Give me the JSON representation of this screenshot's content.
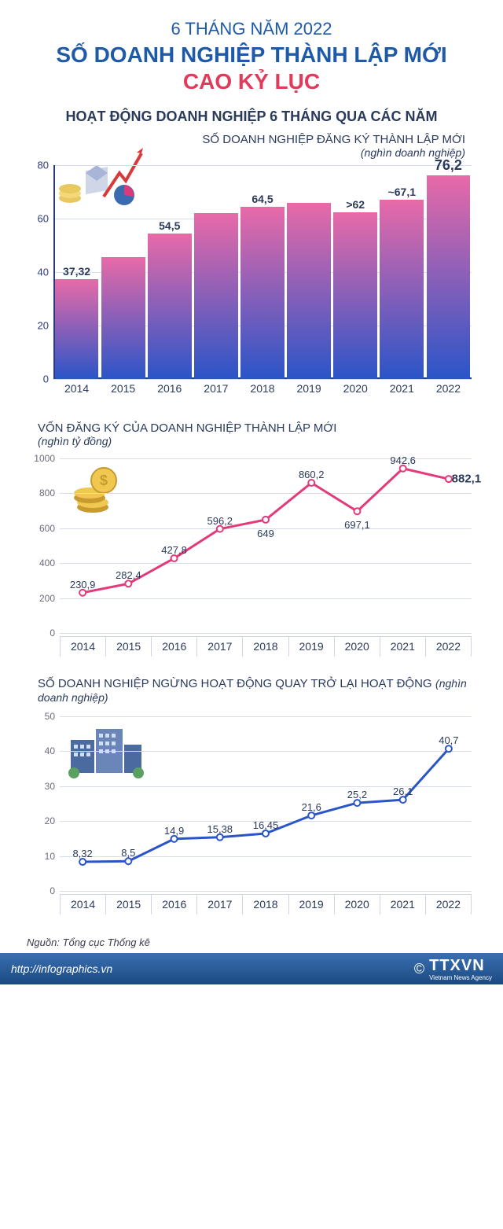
{
  "header": {
    "line1": "6 THÁNG NĂM 2022",
    "line1_color": "#1e5aa8",
    "line2": "SỐ DOANH NGHIỆP THÀNH LẬP MỚI",
    "line2_color": "#1e5aa8",
    "line3": "CAO KỶ LỤC",
    "line3_color": "#e23a5a"
  },
  "section_title": "HOẠT ĐỘNG DOANH NGHIỆP 6 THÁNG QUA CÁC NĂM",
  "chart1": {
    "title": "SỐ DOANH NGHIỆP ĐĂNG KÝ THÀNH LẬP MỚI",
    "subtitle": "(nghìn doanh nghiệp)",
    "type": "bar",
    "ymax": 80,
    "ytick_step": 20,
    "yticks": [
      0,
      20,
      40,
      60,
      80
    ],
    "axis_color": "#2a3a7a",
    "grid_color": "#d8def2",
    "bar_gradient_top": "#e86aa8",
    "bar_gradient_bot": "#2a55c8",
    "categories": [
      "2014",
      "2015",
      "2016",
      "2017",
      "2018",
      "2019",
      "2020",
      "2021",
      "2022"
    ],
    "values": [
      37.32,
      45.5,
      54.5,
      62.0,
      64.5,
      66.0,
      62.5,
      67.1,
      76.2
    ],
    "value_labels": [
      "37,32",
      "",
      "54,5",
      "",
      "64,5",
      "",
      ">62",
      "~67,1",
      "76,2"
    ],
    "highlight_last": true,
    "label_color": "#2a3a5a",
    "label_fontsize": 14
  },
  "chart2": {
    "title": "VỐN ĐĂNG KÝ CỦA DOANH NGHIỆP THÀNH LẬP MỚI",
    "subtitle": "(nghìn tỷ đồng)",
    "type": "line",
    "ymax": 1000,
    "ytick_step": 200,
    "yticks": [
      0,
      200,
      400,
      600,
      800,
      1000
    ],
    "line_color": "#e23a7a",
    "marker_fill": "#ffffff",
    "marker_stroke": "#e23a7a",
    "line_width": 3,
    "grid_color": "#d6dbe8",
    "categories": [
      "2014",
      "2015",
      "2016",
      "2017",
      "2018",
      "2019",
      "2020",
      "2021",
      "2022"
    ],
    "values": [
      230.9,
      282.4,
      427.8,
      596.2,
      649,
      860.2,
      697.1,
      942.6,
      882.1
    ],
    "value_labels": [
      "230,9",
      "282,4",
      "427,8",
      "596,2",
      "649",
      "860,2",
      "697,1",
      "942,6",
      "882,1"
    ],
    "label_offsets": [
      "above",
      "above",
      "above",
      "above",
      "below",
      "above",
      "below",
      "above",
      "right-bold"
    ]
  },
  "chart3": {
    "title": "SỐ DOANH NGHIỆP NGỪNG HOẠT ĐỘNG QUAY TRỞ LẠI HOẠT ĐỘNG",
    "subtitle": "(nghìn doanh nghiệp)",
    "type": "line",
    "ymax": 50,
    "ytick_step": 10,
    "yticks": [
      0,
      10,
      20,
      30,
      40,
      50
    ],
    "line_color": "#2a55c8",
    "marker_fill": "#ffffff",
    "marker_stroke": "#2a55c8",
    "line_width": 3,
    "grid_color": "#d6dbe8",
    "categories": [
      "2014",
      "2015",
      "2016",
      "2017",
      "2018",
      "2019",
      "2020",
      "2021",
      "2022"
    ],
    "values": [
      8.32,
      8.5,
      14.9,
      15.38,
      16.45,
      21.6,
      25.2,
      26.1,
      40.7
    ],
    "value_labels": [
      "8,32",
      "8,5",
      "14,9",
      "15,38",
      "16,45",
      "21,6",
      "25,2",
      "26,1",
      "40,7"
    ]
  },
  "footer": {
    "source": "Nguồn: Tổng cục Thống kê",
    "url": "http://infographics.vn",
    "copyright_symbol": "©",
    "agency": "TTXVN",
    "agency_sub": "Vietnam News Agency",
    "bar_gradient_top": "#3a6fb0",
    "bar_gradient_bot": "#1a4a82"
  }
}
